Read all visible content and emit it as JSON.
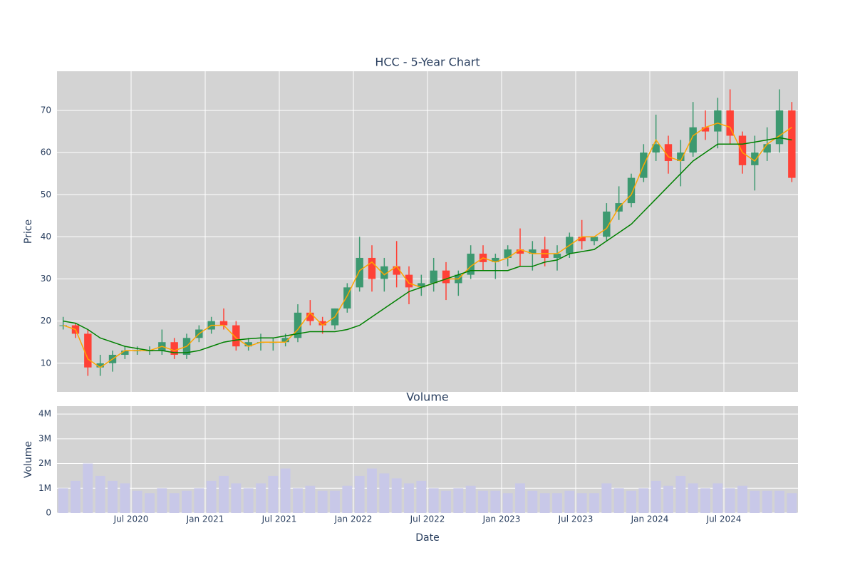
{
  "chart_data": [
    {
      "type": "candlestick",
      "title": "HCC - 5-Year Chart",
      "y_label": "Price",
      "x": [
        "2020-01",
        "2020-02",
        "2020-03",
        "2020-04",
        "2020-05",
        "2020-06",
        "2020-07",
        "2020-08",
        "2020-09",
        "2020-10",
        "2020-11",
        "2020-12",
        "2021-01",
        "2021-02",
        "2021-03",
        "2021-04",
        "2021-05",
        "2021-06",
        "2021-07",
        "2021-08",
        "2021-09",
        "2021-10",
        "2021-11",
        "2021-12",
        "2022-01",
        "2022-02",
        "2022-03",
        "2022-04",
        "2022-05",
        "2022-06",
        "2022-07",
        "2022-08",
        "2022-09",
        "2022-10",
        "2022-11",
        "2022-12",
        "2023-01",
        "2023-02",
        "2023-03",
        "2023-04",
        "2023-05",
        "2023-06",
        "2023-07",
        "2023-08",
        "2023-09",
        "2023-10",
        "2023-11",
        "2023-12",
        "2024-01",
        "2024-02",
        "2024-03",
        "2024-04",
        "2024-05",
        "2024-06",
        "2024-07",
        "2024-08",
        "2024-09",
        "2024-10",
        "2024-11",
        "2024-12"
      ],
      "open": [
        19,
        19,
        17,
        9,
        10,
        12,
        13,
        13,
        13,
        15,
        12,
        16,
        18,
        20,
        19,
        14,
        15,
        15,
        15,
        16,
        22,
        20,
        19,
        23,
        28,
        35,
        30,
        33,
        31,
        28,
        29,
        32,
        29,
        31,
        36,
        34,
        35,
        37,
        36,
        37,
        35,
        36,
        40,
        39,
        40,
        46,
        48,
        54,
        60,
        62,
        58,
        60,
        66,
        65,
        70,
        64,
        57,
        60,
        62,
        70
      ],
      "high": [
        21,
        19.5,
        18,
        12,
        13,
        14,
        14,
        14,
        18,
        16,
        17,
        19,
        21,
        23,
        20,
        16,
        17,
        16,
        17,
        24,
        25,
        21,
        23,
        29,
        40,
        38,
        35,
        39,
        33,
        31,
        35,
        34,
        32,
        38,
        38,
        36,
        38,
        42,
        39,
        40,
        38,
        41,
        44,
        40,
        48,
        52,
        55,
        62,
        69,
        64,
        63,
        72,
        70,
        73,
        75,
        65,
        64,
        66,
        75,
        72
      ],
      "low": [
        18,
        16,
        7,
        7,
        8,
        11,
        12,
        12,
        12,
        11,
        11,
        15,
        17,
        18,
        13,
        13,
        13,
        13,
        14,
        15,
        19,
        17,
        18,
        22,
        27,
        27,
        27,
        28,
        24,
        26,
        27,
        25,
        26,
        30,
        32,
        30,
        33,
        33,
        32,
        33,
        32,
        35,
        37,
        38,
        39,
        44,
        47,
        53,
        58,
        55,
        52,
        59,
        63,
        61,
        62,
        55,
        51,
        58,
        60,
        53
      ],
      "close": [
        19,
        17,
        9,
        10,
        12,
        13,
        13,
        13,
        15,
        12,
        16,
        18,
        20,
        19,
        14,
        15,
        15,
        15,
        16,
        22,
        20,
        19,
        23,
        28,
        35,
        30,
        33,
        31,
        28,
        29,
        32,
        29,
        31,
        36,
        34,
        35,
        37,
        36,
        37,
        35,
        36,
        40,
        39,
        40,
        46,
        48,
        54,
        60,
        62,
        58,
        60,
        66,
        65,
        70,
        64,
        57,
        60,
        62,
        70,
        54
      ],
      "up_color": "#3d9970",
      "down_color": "#ff4136",
      "series": [
        {
          "color": "#ffa500",
          "values": [
            19,
            18,
            11,
            9,
            11,
            13,
            13,
            13,
            14,
            13,
            14,
            17,
            19,
            19,
            16,
            14,
            15,
            15,
            15,
            18,
            22,
            19,
            21,
            26,
            32,
            34,
            31,
            33,
            29,
            28,
            29,
            30,
            30,
            33,
            35,
            34,
            35,
            37,
            36,
            36,
            36,
            38,
            40,
            40,
            42,
            47,
            50,
            57,
            63,
            59,
            58,
            64,
            66,
            67,
            66,
            60,
            58,
            62,
            64,
            66
          ]
        },
        {
          "color": "#008000",
          "values": [
            20,
            19.5,
            18,
            16,
            15,
            14,
            13.5,
            13,
            13,
            12.5,
            12.5,
            13,
            14,
            15,
            15.5,
            15.8,
            16,
            16,
            16.5,
            17,
            17.5,
            17.5,
            17.5,
            18,
            19,
            21,
            23,
            25,
            27,
            28,
            29,
            30,
            31,
            32,
            32,
            32,
            32,
            33,
            33,
            34,
            34.5,
            36,
            36.5,
            37,
            39,
            41,
            43,
            46,
            49,
            52,
            55,
            58,
            60,
            62,
            62,
            62,
            62.5,
            63,
            63.5,
            63
          ]
        }
      ],
      "xlim": [
        "2020-01",
        "2025-01"
      ],
      "xticks": [
        {
          "value": "2020-07",
          "label": "Jul 2020"
        },
        {
          "value": "2021-01",
          "label": "Jan 2021"
        },
        {
          "value": "2021-07",
          "label": "Jul 2021"
        },
        {
          "value": "2022-01",
          "label": "Jan 2022"
        },
        {
          "value": "2022-07",
          "label": "Jul 2022"
        },
        {
          "value": "2023-01",
          "label": "Jan 2023"
        },
        {
          "value": "2023-07",
          "label": "Jul 2023"
        },
        {
          "value": "2024-01",
          "label": "Jan 2024"
        },
        {
          "value": "2024-07",
          "label": "Jul 2024"
        }
      ],
      "ylim": [
        3.2,
        79.3
      ],
      "yticks": [
        10,
        20,
        30,
        40,
        50,
        60,
        70
      ],
      "grid": true
    },
    {
      "type": "bar",
      "title": "Volume",
      "y_label": "Volume",
      "x_label": "Date",
      "color": "#c8c8e8",
      "values": [
        1000000,
        1300000,
        2000000,
        1500000,
        1300000,
        1200000,
        900000,
        800000,
        1000000,
        800000,
        900000,
        1000000,
        1300000,
        1500000,
        1200000,
        1000000,
        1200000,
        1500000,
        1800000,
        1000000,
        1100000,
        900000,
        900000,
        1100000,
        1500000,
        1800000,
        1600000,
        1400000,
        1200000,
        1300000,
        1000000,
        900000,
        1000000,
        1100000,
        900000,
        900000,
        800000,
        1200000,
        900000,
        800000,
        800000,
        900000,
        800000,
        800000,
        1200000,
        1000000,
        900000,
        1000000,
        1300000,
        1100000,
        1500000,
        1200000,
        1000000,
        1200000,
        1000000,
        1100000,
        900000,
        900000,
        900000,
        800000
      ],
      "ylim": [
        0,
        4320000
      ],
      "yticks": [
        0,
        {
          "value": 1000000,
          "label": "1M"
        },
        {
          "value": 2000000,
          "label": "2M"
        },
        {
          "value": 3000000,
          "label": "3M"
        },
        {
          "value": 4000000,
          "label": "4M"
        }
      ],
      "grid": true
    }
  ]
}
